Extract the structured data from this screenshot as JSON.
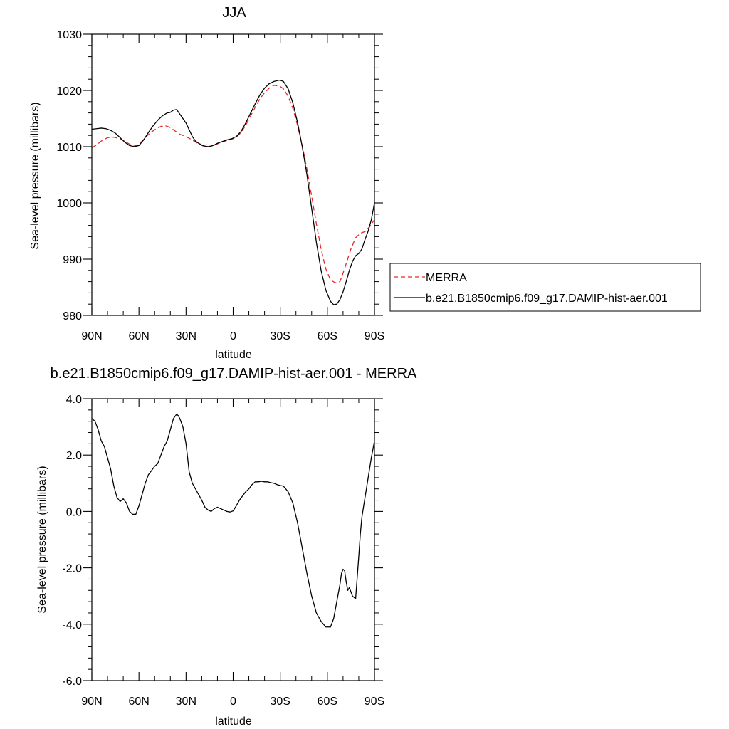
{
  "chart_data": [
    {
      "type": "line",
      "title": "JJA",
      "xlabel": "latitude",
      "ylabel": "Sea-level pressure (millibars)",
      "xlim": [
        90,
        -90
      ],
      "ylim": [
        980,
        1030
      ],
      "x_ticks": [
        90,
        60,
        30,
        0,
        -30,
        -60,
        -90
      ],
      "x_tick_labels": [
        "90N",
        "60N",
        "30N",
        "0",
        "30S",
        "60S",
        "90S"
      ],
      "y_ticks": [
        980,
        990,
        1000,
        1010,
        1020,
        1030
      ],
      "y_tick_labels": [
        "980",
        "990",
        "1000",
        "1010",
        "1020",
        "1030"
      ],
      "grid": false,
      "legend_position": "right",
      "series": [
        {
          "name": "MERRA",
          "color": "#e8262a",
          "style": "dashed",
          "x": [
            90,
            87,
            84,
            80,
            76,
            72,
            68,
            64,
            61,
            58,
            55,
            52,
            49,
            46,
            43,
            40,
            37,
            34,
            31,
            28,
            25,
            22,
            19,
            16,
            13,
            10,
            7,
            4,
            1,
            -2,
            -5,
            -8,
            -11,
            -14,
            -17,
            -20,
            -23,
            -26,
            -29,
            -30,
            -32,
            -35,
            -38,
            -41,
            -44,
            -47,
            -50,
            -53,
            -56,
            -59,
            -62,
            -65,
            -68,
            -70,
            -72,
            -75,
            -78,
            -81,
            -84,
            -87,
            -90
          ],
          "y": [
            1009.8,
            1010.3,
            1011.0,
            1011.6,
            1011.7,
            1011.4,
            1010.8,
            1010.1,
            1010.2,
            1011.0,
            1011.9,
            1012.6,
            1013.2,
            1013.6,
            1013.7,
            1013.4,
            1012.8,
            1012.2,
            1011.9,
            1011.5,
            1011.0,
            1010.5,
            1010.1,
            1010.0,
            1010.2,
            1010.5,
            1010.8,
            1011.1,
            1011.3,
            1011.7,
            1012.5,
            1013.8,
            1015.4,
            1017.0,
            1018.5,
            1019.6,
            1020.4,
            1020.9,
            1020.8,
            1020.7,
            1020.3,
            1019.0,
            1016.8,
            1013.8,
            1010.2,
            1006.0,
            1001.2,
            996.3,
            991.8,
            988.3,
            986.3,
            985.8,
            986.0,
            987.5,
            989.2,
            991.8,
            993.8,
            994.6,
            994.9,
            995.8,
            997.0
          ]
        },
        {
          "name": "b.e21.B1850cmip6.f09_g17.DAMIP-hist-aer.001",
          "color": "#000000",
          "style": "solid",
          "x": [
            90,
            87,
            84,
            81,
            78,
            75,
            72,
            69,
            66,
            63,
            60,
            57,
            54,
            51,
            48,
            45,
            42,
            40,
            38,
            36,
            34,
            32,
            30,
            28,
            26,
            24,
            22,
            20,
            18,
            16,
            14,
            12,
            10,
            7,
            4,
            1,
            -2,
            -5,
            -8,
            -11,
            -14,
            -17,
            -20,
            -23,
            -26,
            -29,
            -30,
            -32,
            -35,
            -38,
            -41,
            -44,
            -47,
            -50,
            -53,
            -56,
            -59,
            -62,
            -64,
            -66,
            -68,
            -70,
            -72,
            -74,
            -76,
            -78,
            -80,
            -82,
            -84,
            -86,
            -88,
            -90
          ],
          "y": [
            1013.1,
            1013.2,
            1013.3,
            1013.2,
            1012.9,
            1012.4,
            1011.6,
            1010.8,
            1010.2,
            1010.0,
            1010.2,
            1011.2,
            1012.5,
            1013.7,
            1014.7,
            1015.5,
            1016.0,
            1016.1,
            1016.5,
            1016.6,
            1015.8,
            1015.0,
            1014.2,
            1013.0,
            1011.8,
            1011.0,
            1010.6,
            1010.3,
            1010.1,
            1010.0,
            1010.1,
            1010.3,
            1010.6,
            1010.9,
            1011.2,
            1011.4,
            1011.8,
            1012.7,
            1014.2,
            1015.9,
            1017.6,
            1019.2,
            1020.4,
            1021.2,
            1021.6,
            1021.8,
            1021.8,
            1021.6,
            1020.3,
            1017.8,
            1014.3,
            1010.0,
            1005.0,
            999.0,
            993.0,
            988.0,
            984.5,
            982.5,
            981.9,
            982.0,
            982.8,
            984.2,
            986.0,
            988.0,
            989.6,
            990.6,
            991.0,
            991.8,
            993.5,
            995.0,
            997.0,
            1000.0
          ]
        }
      ]
    },
    {
      "type": "line",
      "title": "b.e21.B1850cmip6.f09_g17.DAMIP-hist-aer.001 - MERRA",
      "xlabel": "latitude",
      "ylabel": "Sea-level pressure (millibars)",
      "xlim": [
        90,
        -90
      ],
      "ylim": [
        -6.0,
        4.0
      ],
      "x_ticks": [
        90,
        60,
        30,
        0,
        -30,
        -60,
        -90
      ],
      "x_tick_labels": [
        "90N",
        "60N",
        "30N",
        "0",
        "30S",
        "60S",
        "90S"
      ],
      "y_ticks": [
        -6.0,
        -4.0,
        -2.0,
        0.0,
        2.0,
        4.0
      ],
      "y_tick_labels": [
        "-6.0",
        "-4.0",
        "-2.0",
        "0.0",
        "2.0",
        "4.0"
      ],
      "grid": false,
      "series": [
        {
          "color": "#000000",
          "style": "solid",
          "x": [
            90,
            88,
            86,
            84,
            82,
            80,
            78,
            76,
            74,
            72,
            70,
            68,
            66,
            64,
            62,
            60,
            58,
            56,
            54,
            52,
            50,
            48,
            46,
            44,
            42,
            40,
            38,
            36,
            35,
            34,
            32,
            30,
            28,
            26,
            24,
            22,
            20,
            18,
            16,
            14,
            12,
            10,
            8,
            6,
            4,
            2,
            0,
            -2,
            -4,
            -6,
            -8,
            -10,
            -12,
            -14,
            -16,
            -18,
            -20,
            -22,
            -24,
            -26,
            -28,
            -30,
            -32,
            -35,
            -38,
            -41,
            -44,
            -47,
            -50,
            -53,
            -56,
            -59,
            -62,
            -64,
            -66,
            -68,
            -69,
            -70,
            -71,
            -72,
            -73,
            -74,
            -76,
            -78,
            -80,
            -81,
            -82,
            -84,
            -86,
            -88,
            -90
          ],
          "y": [
            3.3,
            3.2,
            2.9,
            2.5,
            2.3,
            1.9,
            1.5,
            0.9,
            0.5,
            0.35,
            0.45,
            0.3,
            0.0,
            -0.1,
            -0.1,
            0.2,
            0.6,
            1.0,
            1.3,
            1.45,
            1.6,
            1.7,
            2.0,
            2.3,
            2.5,
            2.9,
            3.3,
            3.45,
            3.4,
            3.3,
            3.0,
            2.4,
            1.4,
            1.0,
            0.8,
            0.6,
            0.4,
            0.15,
            0.05,
            0.0,
            0.1,
            0.15,
            0.1,
            0.05,
            0.0,
            -0.02,
            0.02,
            0.2,
            0.4,
            0.55,
            0.7,
            0.8,
            0.95,
            1.05,
            1.05,
            1.07,
            1.05,
            1.05,
            1.02,
            1.0,
            0.95,
            0.92,
            0.9,
            0.7,
            0.3,
            -0.4,
            -1.3,
            -2.2,
            -3.0,
            -3.6,
            -3.9,
            -4.1,
            -4.1,
            -3.8,
            -3.2,
            -2.6,
            -2.2,
            -2.05,
            -2.1,
            -2.5,
            -2.8,
            -2.7,
            -3.0,
            -3.1,
            -1.6,
            -0.8,
            -0.2,
            0.5,
            1.2,
            1.9,
            2.5
          ]
        }
      ]
    }
  ]
}
